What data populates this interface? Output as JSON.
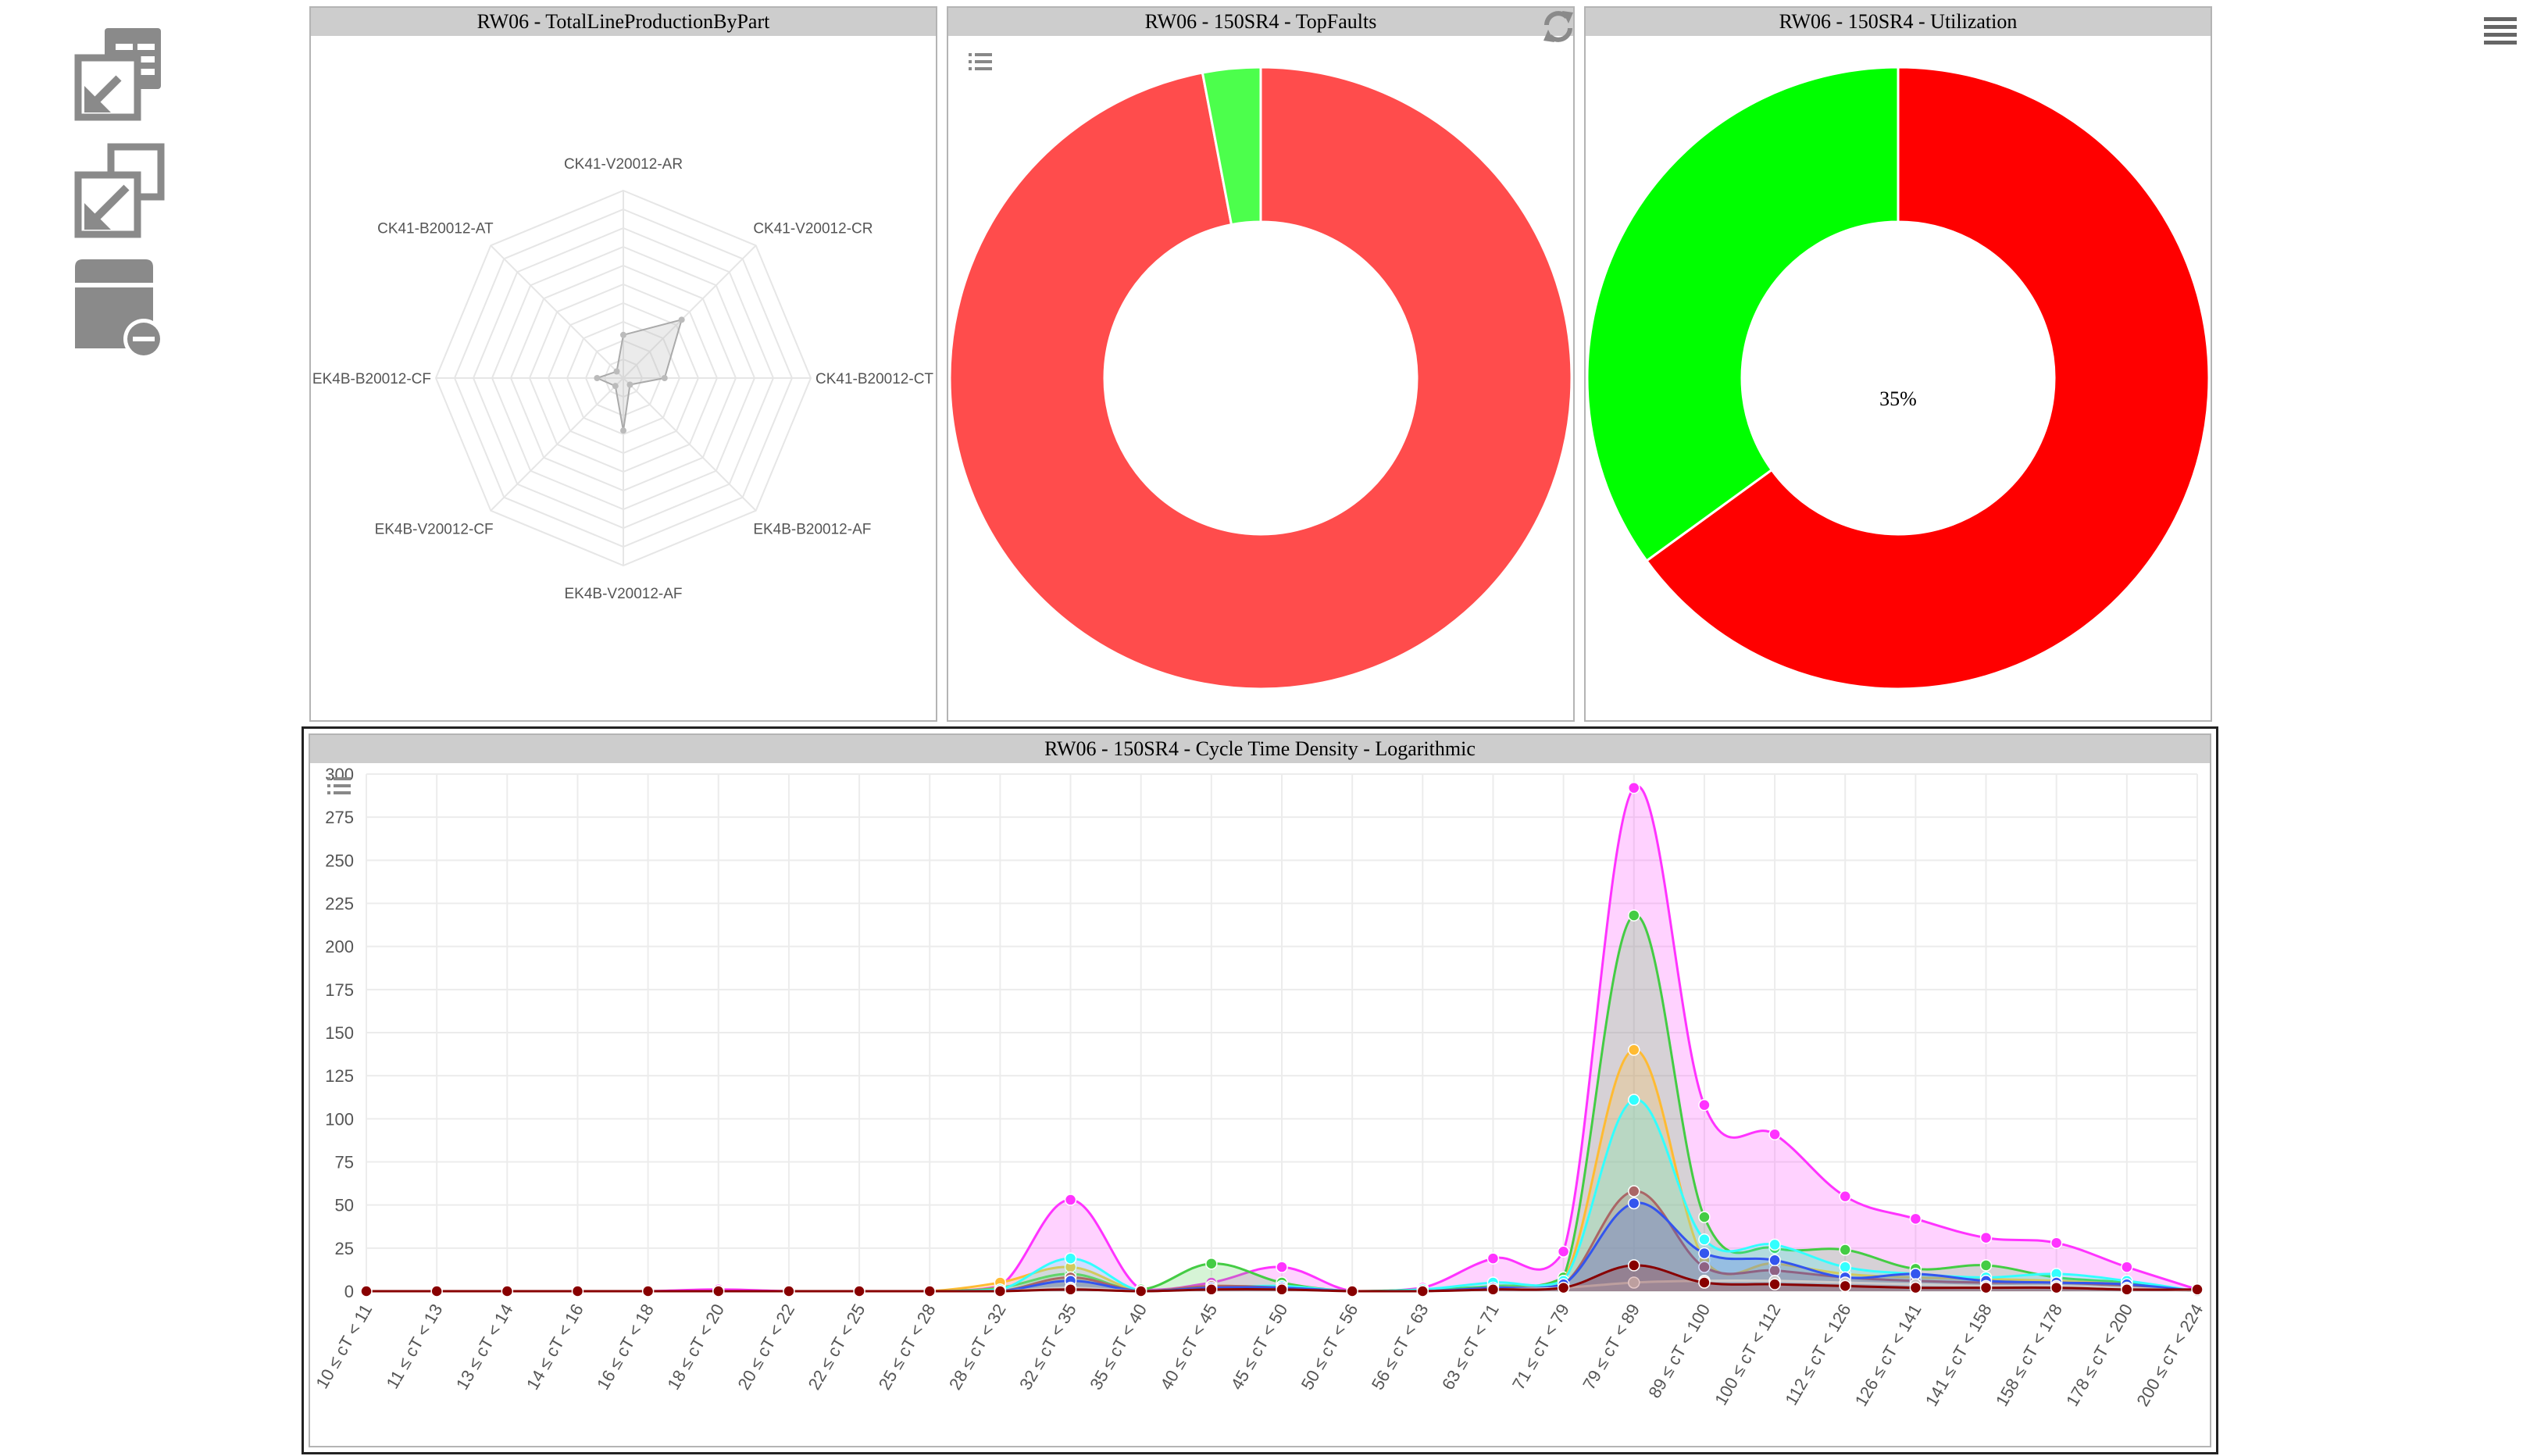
{
  "toolbar": {
    "buttons": [
      {
        "name": "import-layout-icon"
      },
      {
        "name": "export-layout-icon"
      },
      {
        "name": "remove-dashboard-icon"
      }
    ]
  },
  "hamburger_icon": "hamburger-menu-icon",
  "panels": {
    "radar": {
      "title": "RW06 - TotalLineProductionByPart"
    },
    "faults": {
      "title": "RW06 - 150SR4 - TopFaults"
    },
    "utilization": {
      "title": "RW06 - 150SR4 - Utilization",
      "center_label": "35%"
    },
    "density": {
      "title": "RW06 - 150SR4 - Cycle Time Density - Logarithmic"
    }
  },
  "chart_data": [
    {
      "type": "radar",
      "title": "RW06 - TotalLineProductionByPart",
      "categories": [
        "CK41-V20012-AR",
        "CK41-V20012-CR",
        "CK41-B20012-CT",
        "EK4B-B20012-AF",
        "EK4B-V20012-AF",
        "EK4B-V20012-CF",
        "EK4B-B20012-CF",
        "CK41-B20012-AT"
      ],
      "values": [
        0.23,
        0.44,
        0.22,
        0.05,
        0.28,
        0.06,
        0.14,
        0.05
      ],
      "rmax": 1,
      "grid": true
    },
    {
      "type": "pie",
      "donut": true,
      "title": "RW06 - 150SR4 - TopFaults",
      "values": [
        97,
        3
      ],
      "colors": [
        "#ff4c4c",
        "#4cff4c"
      ]
    },
    {
      "type": "pie",
      "donut": true,
      "title": "RW06 - 150SR4 - Utilization",
      "values": [
        65,
        35
      ],
      "colors": [
        "#ff0000",
        "#00ff00"
      ],
      "center_label": "35%"
    },
    {
      "type": "area",
      "title": "RW06 - 150SR4 - Cycle Time Density - Logarithmic",
      "categories": [
        "10 ≤ cT < 11",
        "11 ≤ cT < 13",
        "13 ≤ cT < 14",
        "14 ≤ cT < 16",
        "16 ≤ cT < 18",
        "18 ≤ cT < 20",
        "20 ≤ cT < 22",
        "22 ≤ cT < 25",
        "25 ≤ cT < 28",
        "28 ≤ cT < 32",
        "32 ≤ cT < 35",
        "35 ≤ cT < 40",
        "40 ≤ cT < 45",
        "45 ≤ cT < 50",
        "50 ≤ cT < 56",
        "56 ≤ cT < 63",
        "63 ≤ cT < 71",
        "71 ≤ cT < 79",
        "79 ≤ cT < 89",
        "89 ≤ cT < 100",
        "100 ≤ cT < 112",
        "112 ≤ cT < 126",
        "126 ≤ cT < 141",
        "141 ≤ cT < 158",
        "158 ≤ cT < 178",
        "178 ≤ cT < 200",
        "200 ≤ cT < 224"
      ],
      "ylim": [
        0,
        300
      ],
      "yticks": [
        0,
        25,
        50,
        75,
        100,
        125,
        150,
        175,
        200,
        225,
        250,
        275,
        300
      ],
      "grid": true,
      "series": [
        {
          "color": "#ff33ff",
          "values": [
            0,
            0,
            0,
            0,
            0,
            1,
            0,
            0,
            0,
            3,
            53,
            1,
            5,
            14,
            0,
            2,
            19,
            23,
            292,
            108,
            91,
            55,
            42,
            31,
            28,
            14,
            1
          ]
        },
        {
          "color": "#44cc44",
          "values": [
            0,
            0,
            0,
            0,
            0,
            0,
            0,
            0,
            0,
            2,
            10,
            1,
            16,
            5,
            0,
            1,
            3,
            8,
            218,
            43,
            25,
            24,
            13,
            15,
            8,
            5,
            0
          ]
        },
        {
          "color": "#ffbb33",
          "values": [
            0,
            0,
            0,
            0,
            0,
            0,
            0,
            0,
            0,
            5,
            14,
            0,
            3,
            2,
            0,
            0,
            2,
            6,
            140,
            18,
            16,
            10,
            8,
            7,
            6,
            4,
            0
          ]
        },
        {
          "color": "#33ffff",
          "values": [
            0,
            0,
            0,
            0,
            0,
            0,
            0,
            0,
            0,
            1,
            19,
            0,
            2,
            3,
            0,
            1,
            5,
            6,
            111,
            30,
            27,
            14,
            10,
            8,
            10,
            6,
            0
          ]
        },
        {
          "color": "#aa6666",
          "values": [
            0,
            0,
            0,
            0,
            0,
            0,
            0,
            0,
            0,
            0,
            8,
            0,
            3,
            2,
            0,
            0,
            2,
            4,
            58,
            14,
            12,
            8,
            6,
            5,
            5,
            3,
            0
          ]
        },
        {
          "color": "#3355ee",
          "values": [
            0,
            0,
            0,
            0,
            0,
            0,
            0,
            0,
            0,
            0,
            6,
            0,
            2,
            2,
            0,
            0,
            2,
            4,
            51,
            22,
            18,
            8,
            10,
            6,
            5,
            4,
            0
          ]
        },
        {
          "color": "#cccccc",
          "values": [
            0,
            0,
            0,
            0,
            0,
            0,
            0,
            0,
            0,
            0,
            2,
            0,
            1,
            1,
            0,
            0,
            1,
            2,
            5,
            6,
            6,
            5,
            4,
            3,
            3,
            2,
            0
          ]
        },
        {
          "color": "#880000",
          "values": [
            0,
            0,
            0,
            0,
            0,
            0,
            0,
            0,
            0,
            0,
            1,
            0,
            1,
            1,
            0,
            0,
            1,
            2,
            15,
            5,
            4,
            3,
            2,
            2,
            2,
            1,
            1
          ]
        }
      ]
    }
  ]
}
